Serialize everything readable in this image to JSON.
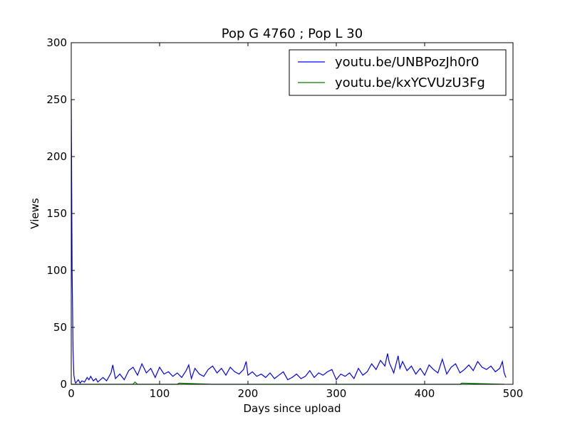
{
  "chart_data": {
    "type": "line",
    "title": "Pop G 4760 ; Pop L 30",
    "xlabel": "Days since upload",
    "ylabel": "Views",
    "xlim": [
      0,
      500
    ],
    "ylim": [
      0,
      300
    ],
    "xticks": [
      "0",
      "100",
      "200",
      "300",
      "400",
      "500"
    ],
    "yticks": [
      "0",
      "50",
      "100",
      "150",
      "200",
      "250",
      "300"
    ],
    "grid": false,
    "legend_position": "top-right",
    "series": [
      {
        "name": "youtu.be/UNBPozJh0r0",
        "color": "#0000ff",
        "x": [
          0,
          1,
          2,
          3,
          4,
          5,
          6,
          8,
          10,
          12,
          15,
          18,
          20,
          22,
          25,
          28,
          30,
          33,
          36,
          40,
          45,
          47,
          50,
          55,
          60,
          65,
          70,
          75,
          80,
          85,
          90,
          95,
          100,
          105,
          110,
          115,
          120,
          125,
          130,
          133,
          136,
          140,
          145,
          150,
          155,
          160,
          165,
          170,
          175,
          180,
          185,
          190,
          195,
          198,
          200,
          205,
          210,
          215,
          220,
          225,
          230,
          235,
          240,
          245,
          250,
          255,
          260,
          265,
          270,
          275,
          280,
          285,
          290,
          295,
          300,
          305,
          310,
          315,
          320,
          325,
          330,
          335,
          340,
          345,
          350,
          355,
          358,
          360,
          365,
          370,
          372,
          375,
          380,
          385,
          390,
          395,
          400,
          405,
          410,
          415,
          420,
          425,
          430,
          435,
          440,
          445,
          450,
          455,
          460,
          465,
          470,
          475,
          480,
          485,
          488,
          490,
          492
        ],
        "y": [
          250,
          100,
          30,
          8,
          3,
          1,
          2,
          4,
          1,
          3,
          2,
          6,
          4,
          7,
          3,
          5,
          2,
          4,
          6,
          3,
          10,
          17,
          5,
          9,
          4,
          12,
          15,
          8,
          18,
          10,
          14,
          6,
          15,
          9,
          11,
          7,
          10,
          6,
          12,
          17,
          5,
          14,
          9,
          7,
          13,
          16,
          10,
          14,
          8,
          15,
          11,
          9,
          13,
          20,
          8,
          11,
          7,
          9,
          6,
          10,
          5,
          8,
          11,
          4,
          6,
          9,
          5,
          7,
          12,
          6,
          10,
          8,
          11,
          13,
          4,
          9,
          7,
          10,
          5,
          14,
          8,
          11,
          18,
          13,
          21,
          16,
          27,
          19,
          10,
          25,
          14,
          20,
          12,
          16,
          9,
          14,
          8,
          17,
          13,
          10,
          22,
          9,
          15,
          18,
          10,
          13,
          17,
          12,
          20,
          15,
          13,
          16,
          11,
          14,
          20,
          10,
          6
        ]
      },
      {
        "name": "youtu.be/kxYCVUzU3Fg",
        "color": "#008000",
        "x": [
          0,
          60,
          70,
          72,
          75,
          80,
          120,
          122,
          160,
          250,
          300,
          360,
          440,
          442,
          490
        ],
        "y": [
          0,
          0,
          0,
          2,
          0,
          0,
          0,
          1,
          0,
          0,
          0,
          0,
          0,
          1,
          0
        ]
      }
    ]
  }
}
